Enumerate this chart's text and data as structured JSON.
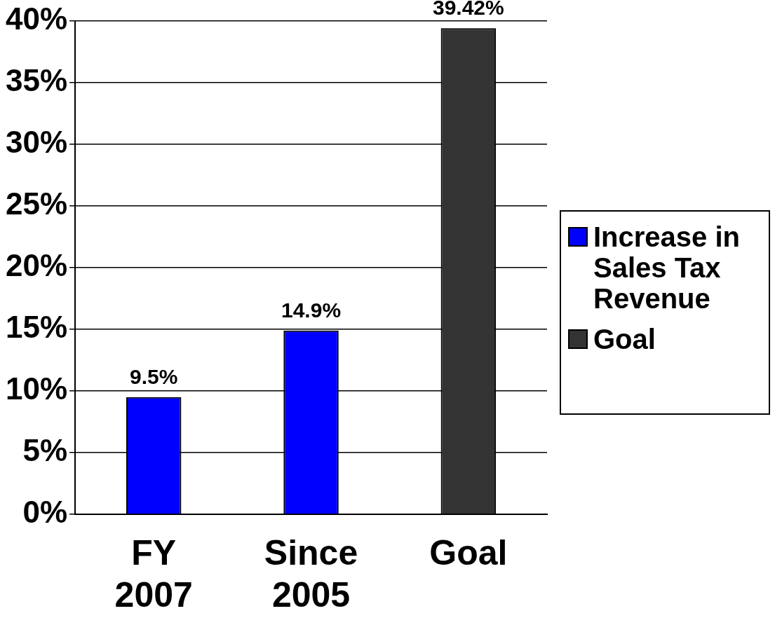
{
  "chart_data": {
    "type": "bar",
    "categories": [
      "FY 2007",
      "Since 2005",
      "Goal"
    ],
    "series": [
      {
        "name": "Increase in Sales Tax Revenue",
        "color": "#0000ff",
        "values": [
          9.5,
          14.9,
          null
        ],
        "value_labels": [
          "9.5%",
          "14.9%",
          null
        ]
      },
      {
        "name": "Goal",
        "color": "#333333",
        "values": [
          null,
          null,
          39.42
        ],
        "value_labels": [
          null,
          null,
          "39.42%"
        ]
      }
    ],
    "ylim": [
      0,
      40
    ],
    "yticks": [
      {
        "value": 0,
        "label": "0%"
      },
      {
        "value": 5,
        "label": "5%"
      },
      {
        "value": 10,
        "label": "10%"
      },
      {
        "value": 15,
        "label": "15%"
      },
      {
        "value": 20,
        "label": "20%"
      },
      {
        "value": 25,
        "label": "25%"
      },
      {
        "value": 30,
        "label": "30%"
      },
      {
        "value": 35,
        "label": "35%"
      },
      {
        "value": 40,
        "label": "40%"
      }
    ],
    "grid": "y",
    "legend": "right"
  }
}
